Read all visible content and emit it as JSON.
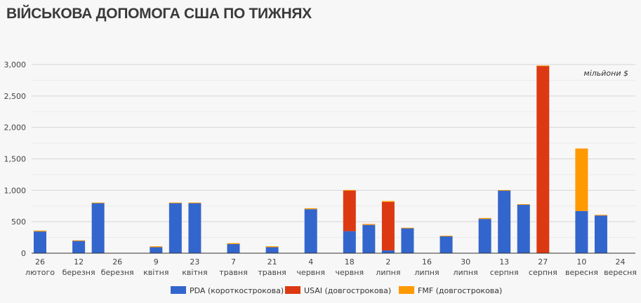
{
  "title": "ВІЙСЬКОВА ДОПОМОГА США ПО ТИЖНЯХ",
  "chart_data": {
    "type": "bar",
    "stacked": true,
    "title": "ВІЙСЬКОВА ДОПОМОГА США ПО ТИЖНЯХ",
    "unit_label": "мільйони $",
    "ylim": [
      0,
      3000
    ],
    "yticks": [
      "0",
      "500",
      "1,000",
      "1,500",
      "2,000",
      "2,500",
      "3,000"
    ],
    "ytick_values": [
      0,
      500,
      1000,
      1500,
      2000,
      2500,
      3000
    ],
    "grid": true,
    "legend_position": "bottom",
    "categories": [
      {
        "day": "26",
        "month": "лютого"
      },
      {
        "day": "",
        "month": ""
      },
      {
        "day": "12",
        "month": "березня"
      },
      {
        "day": "",
        "month": ""
      },
      {
        "day": "26",
        "month": "березня"
      },
      {
        "day": "",
        "month": ""
      },
      {
        "day": "9",
        "month": "квітня"
      },
      {
        "day": "",
        "month": ""
      },
      {
        "day": "23",
        "month": "квітня"
      },
      {
        "day": "",
        "month": ""
      },
      {
        "day": "7",
        "month": "травня"
      },
      {
        "day": "",
        "month": ""
      },
      {
        "day": "21",
        "month": "травня"
      },
      {
        "day": "",
        "month": ""
      },
      {
        "day": "4",
        "month": "червня"
      },
      {
        "day": "",
        "month": ""
      },
      {
        "day": "18",
        "month": "червня"
      },
      {
        "day": "",
        "month": ""
      },
      {
        "day": "2",
        "month": "липня"
      },
      {
        "day": "",
        "month": ""
      },
      {
        "day": "16",
        "month": "липня"
      },
      {
        "day": "",
        "month": ""
      },
      {
        "day": "30",
        "month": "липня"
      },
      {
        "day": "",
        "month": ""
      },
      {
        "day": "13",
        "month": "серпня"
      },
      {
        "day": "",
        "month": ""
      },
      {
        "day": "27",
        "month": "серпня"
      },
      {
        "day": "",
        "month": ""
      },
      {
        "day": "10",
        "month": "вересня"
      },
      {
        "day": "",
        "month": ""
      },
      {
        "day": "24",
        "month": "вересня"
      }
    ],
    "series": [
      {
        "name": "PDA (короткострокова)",
        "color": "#3366cc",
        "values": [
          345,
          0,
          200,
          800,
          0,
          0,
          95,
          800,
          800,
          0,
          145,
          0,
          95,
          0,
          700,
          0,
          350,
          450,
          45,
          400,
          0,
          268,
          0,
          545,
          1000,
          770,
          0,
          0,
          670,
          600,
          0
        ]
      },
      {
        "name": "USAI (довгострокова)",
        "color": "#dc3912",
        "values": [
          0,
          0,
          0,
          0,
          0,
          0,
          0,
          0,
          0,
          0,
          0,
          0,
          0,
          0,
          0,
          0,
          650,
          0,
          770,
          0,
          0,
          0,
          0,
          0,
          0,
          0,
          2980,
          0,
          0,
          0,
          0
        ]
      },
      {
        "name": "FMF (довгострокова)",
        "color": "#ff9900",
        "values": [
          15,
          0,
          5,
          5,
          0,
          0,
          15,
          5,
          5,
          0,
          15,
          0,
          15,
          0,
          15,
          0,
          5,
          15,
          15,
          5,
          0,
          10,
          0,
          15,
          5,
          10,
          5,
          0,
          995,
          10,
          0
        ]
      }
    ]
  }
}
